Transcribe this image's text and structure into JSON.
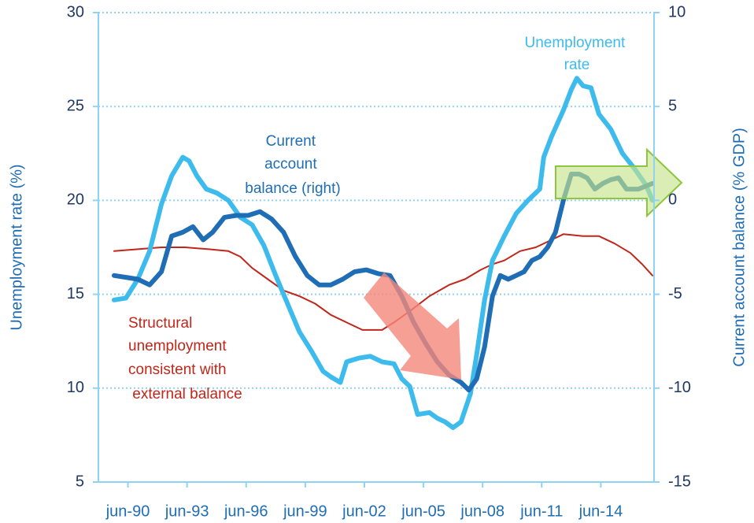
{
  "chart_data": {
    "type": "line",
    "ylabel": "Unemployment rate (%)",
    "y2label": "Current account balance (% GDP)",
    "xlim": [
      1989,
      2017.2
    ],
    "xticks": [
      {
        "value": 1990.5,
        "label": "jun-90"
      },
      {
        "value": 1993.5,
        "label": "jun-93"
      },
      {
        "value": 1996.5,
        "label": "jun-96"
      },
      {
        "value": 1999.5,
        "label": "jun-99"
      },
      {
        "value": 2002.5,
        "label": "jun-02"
      },
      {
        "value": 2005.5,
        "label": "jun-05"
      },
      {
        "value": 2008.5,
        "label": "jun-08"
      },
      {
        "value": 2011.5,
        "label": "jun-11"
      },
      {
        "value": 2014.5,
        "label": "jun-14"
      }
    ],
    "ylim": [
      5,
      30
    ],
    "yticks": [
      5,
      10,
      15,
      20,
      25,
      30
    ],
    "y2lim": [
      -15,
      10
    ],
    "y2ticks": [
      -15,
      -10,
      -5,
      0,
      5,
      10
    ],
    "grid": true,
    "series": [
      {
        "color": "#c0261a",
        "axis": "y",
        "width": 2,
        "x": [
          1989.8,
          1991.0,
          1992.2,
          1993.4,
          1994.6,
          1995.6,
          1996.2,
          1996.8,
          1997.6,
          1998.4,
          1999.2,
          2000.0,
          2000.8,
          2001.6,
          2002.4,
          2003.4,
          2004.0,
          2004.8,
          2005.8,
          2006.8,
          2007.6,
          2008.4,
          2009.0,
          2009.6,
          2010.4,
          2011.2,
          2012.0,
          2012.6,
          2013.6,
          2014.4,
          2015.2,
          2016.0,
          2016.6,
          2017.12
        ],
        "values": [
          17.3,
          17.4,
          17.5,
          17.5,
          17.4,
          17.3,
          17.0,
          16.4,
          15.8,
          15.2,
          14.9,
          14.5,
          13.9,
          13.5,
          13.1,
          13.1,
          13.5,
          14.1,
          14.9,
          15.5,
          15.8,
          16.3,
          16.6,
          16.8,
          17.3,
          17.5,
          17.9,
          18.2,
          18.1,
          18.1,
          17.7,
          17.2,
          16.6,
          16.0
        ]
      },
      {
        "color": "#3dbbec",
        "axis": "y",
        "width": 6,
        "x": [
          1989.8,
          1990.4,
          1991.0,
          1991.6,
          1992.2,
          1992.72,
          1993.28,
          1993.6,
          1994.0,
          1994.48,
          1995.0,
          1995.6,
          1996.2,
          1996.8,
          1997.4,
          1998.0,
          1998.6,
          1999.2,
          1999.8,
          2000.4,
          2000.8,
          2001.28,
          2001.6,
          2002.2,
          2002.8,
          2003.4,
          2004.0,
          2004.4,
          2004.8,
          2005.2,
          2005.8,
          2006.2,
          2006.6,
          2007.0,
          2007.4,
          2007.88,
          2008.2,
          2008.6,
          2009.0,
          2009.6,
          2010.2,
          2010.8,
          2011.4,
          2011.6,
          2012.0,
          2012.6,
          2013.0,
          2013.28,
          2013.6,
          2014.0,
          2014.4,
          2015.0,
          2015.6,
          2016.2,
          2016.8,
          2017.12
        ],
        "values": [
          14.7,
          14.8,
          15.8,
          17.3,
          19.8,
          21.3,
          22.3,
          22.1,
          21.3,
          20.6,
          20.4,
          20.0,
          19.1,
          18.7,
          17.6,
          16.0,
          14.5,
          13.0,
          12.0,
          10.9,
          10.6,
          10.3,
          11.4,
          11.6,
          11.7,
          11.4,
          11.3,
          10.5,
          10.1,
          8.6,
          8.7,
          8.4,
          8.2,
          7.9,
          8.2,
          9.7,
          11.8,
          14.7,
          16.8,
          18.1,
          19.3,
          20.0,
          20.6,
          22.3,
          23.4,
          24.8,
          25.9,
          26.5,
          26.1,
          26.0,
          24.6,
          23.8,
          22.5,
          21.7,
          20.8,
          20.0
        ]
      },
      {
        "color": "#1f6db5",
        "axis": "y2",
        "width": 6,
        "x": [
          1989.8,
          1990.4,
          1991.0,
          1991.6,
          1992.2,
          1992.72,
          1993.28,
          1993.8,
          1994.32,
          1994.8,
          1995.4,
          1996.0,
          1996.6,
          1997.2,
          1997.8,
          1998.4,
          1999.0,
          1999.6,
          2000.2,
          2000.8,
          2001.4,
          2002.0,
          2002.6,
          2003.2,
          2003.8,
          2004.4,
          2005.0,
          2005.6,
          2006.2,
          2006.8,
          2007.4,
          2007.8,
          2008.2,
          2008.6,
          2009.0,
          2009.4,
          2009.8,
          2010.2,
          2010.6,
          2011.0,
          2011.4,
          2011.8,
          2012.2,
          2012.6,
          2013.0,
          2013.4,
          2013.8,
          2014.2,
          2014.6,
          2015.0,
          2015.4,
          2015.8,
          2016.4,
          2017.12
        ],
        "values": [
          -4.0,
          -4.1,
          -4.2,
          -4.5,
          -3.8,
          -1.9,
          -1.7,
          -1.4,
          -2.1,
          -1.7,
          -0.9,
          -0.8,
          -0.8,
          -0.6,
          -1.0,
          -1.7,
          -3.0,
          -4.0,
          -4.5,
          -4.5,
          -4.2,
          -3.8,
          -3.7,
          -3.9,
          -4.0,
          -5.1,
          -6.5,
          -7.6,
          -8.6,
          -9.3,
          -9.7,
          -10.1,
          -9.5,
          -7.8,
          -5.1,
          -4.0,
          -4.2,
          -4.0,
          -3.8,
          -3.2,
          -3.0,
          -2.5,
          -1.7,
          0.0,
          1.4,
          1.4,
          1.2,
          0.6,
          0.9,
          1.1,
          1.2,
          0.6,
          0.6,
          0.9
        ]
      }
    ],
    "annotations": [
      {
        "lines": [
          "Unemployment",
          "rate"
        ],
        "color": "#3dbbec"
      },
      {
        "lines": [
          "Current",
          "account",
          "balance (right)"
        ],
        "color": "#1f6db5"
      },
      {
        "lines": [
          "Structural",
          "unemployment",
          "consistent with",
          " external balance"
        ],
        "color": "#c0261a"
      }
    ]
  }
}
